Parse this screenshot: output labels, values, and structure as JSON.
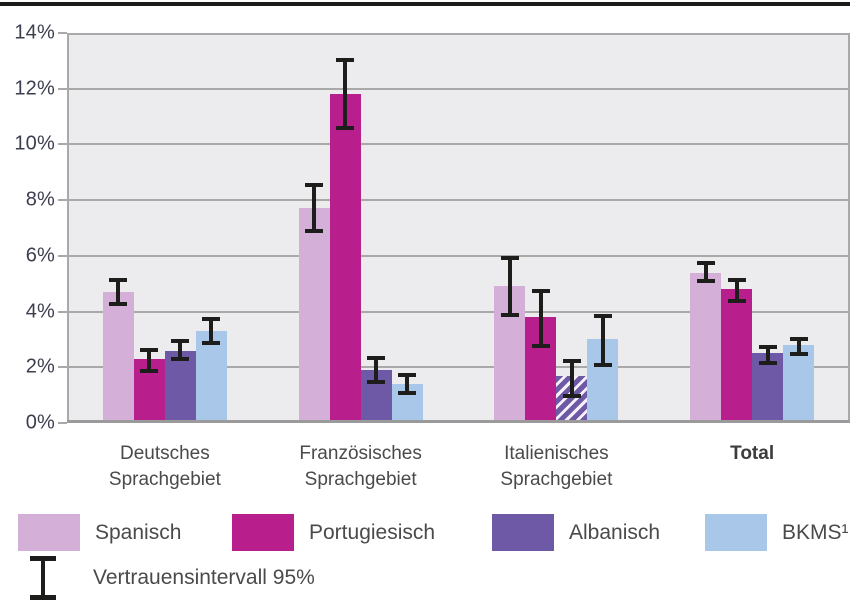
{
  "chart_data": {
    "type": "bar",
    "unit": "%",
    "ylim": [
      0,
      14
    ],
    "grid": true,
    "legend_position": "bottom",
    "y_ticks": [
      {
        "v": 0,
        "label": "0%"
      },
      {
        "v": 2,
        "label": "2%"
      },
      {
        "v": 4,
        "label": "4%"
      },
      {
        "v": 6,
        "label": "6%"
      },
      {
        "v": 8,
        "label": "8%"
      },
      {
        "v": 10,
        "label": "10%"
      },
      {
        "v": 12,
        "label": "12%"
      },
      {
        "v": 14,
        "label": "14%"
      }
    ],
    "categories": [
      {
        "lines": [
          "Deutsches",
          "Sprachgebiet"
        ],
        "bold": false
      },
      {
        "lines": [
          "Französisches",
          "Sprachgebiet"
        ],
        "bold": false
      },
      {
        "lines": [
          "Italienisches",
          "Sprachgebiet"
        ],
        "bold": false
      },
      {
        "lines": [
          "Total"
        ],
        "bold": true
      }
    ],
    "series": [
      {
        "name": "Spanisch",
        "color": "#d4afd7",
        "values": [
          4.7,
          7.7,
          4.9,
          5.4
        ],
        "ci_low": [
          4.2,
          6.8,
          3.8,
          5.0
        ],
        "ci_high": [
          5.2,
          8.6,
          6.0,
          5.8
        ],
        "hatched": [
          false,
          false,
          false,
          false
        ]
      },
      {
        "name": "Portugiesisch",
        "color": "#b81e8c",
        "values": [
          2.3,
          11.8,
          3.8,
          4.8
        ],
        "ci_low": [
          1.8,
          10.5,
          2.7,
          4.3
        ],
        "ci_high": [
          2.7,
          13.1,
          4.8,
          5.2
        ],
        "hatched": [
          false,
          false,
          false,
          false
        ]
      },
      {
        "name": "Albanisch",
        "color": "#6e59a6",
        "values": [
          2.6,
          1.9,
          1.7,
          2.5
        ],
        "ci_low": [
          2.2,
          1.4,
          0.9,
          2.1
        ],
        "ci_high": [
          3.0,
          2.4,
          2.3,
          2.8
        ],
        "hatched": [
          false,
          false,
          true,
          false
        ]
      },
      {
        "name": "BKMS¹",
        "color": "#a9c8e9",
        "values": [
          3.3,
          1.4,
          3.0,
          2.8
        ],
        "ci_low": [
          2.8,
          1.0,
          2.0,
          2.4
        ],
        "ci_high": [
          3.8,
          1.8,
          3.9,
          3.1
        ],
        "hatched": [
          false,
          false,
          false,
          false
        ]
      }
    ],
    "error_bars": {
      "label": "Vertrauensintervall 95%",
      "color": "#1d1d1b"
    }
  },
  "style": {
    "plot_background": "#ececee",
    "gridline_color": "#a9a9a9",
    "axis_text_color": "#3b3e4e",
    "label_text_color": "#4a4a4a",
    "top_rule_color": "#1b1b19"
  }
}
